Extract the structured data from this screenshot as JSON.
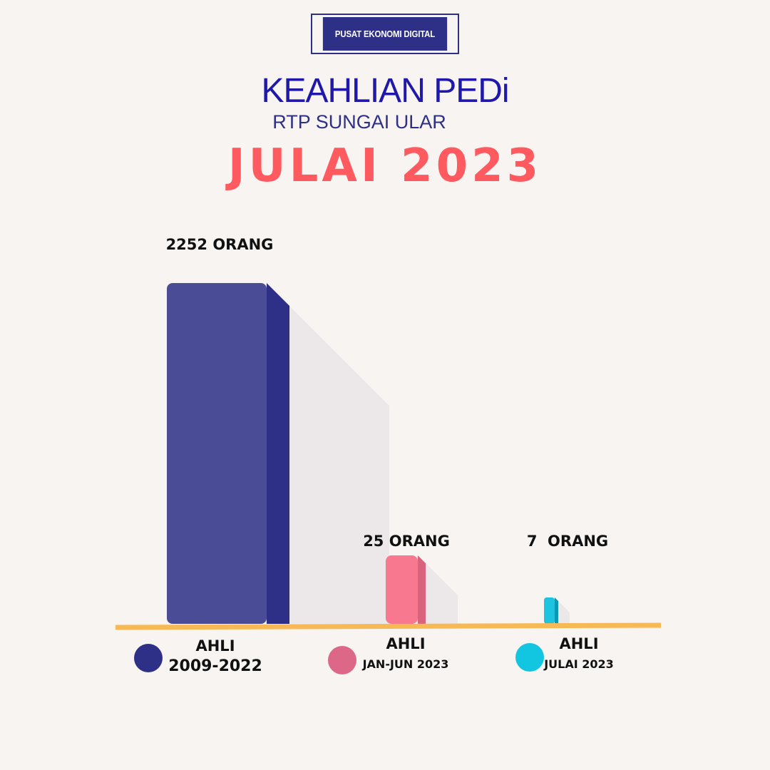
{
  "badge": {
    "text": "PUSAT EKONOMI DIGITAL"
  },
  "header": {
    "title": "KEAHLIAN PEDi",
    "subtitle": "RTP SUNGAI ULAR",
    "headline": "JULAI 2023"
  },
  "chart_data": {
    "type": "bar",
    "categories": [
      "AHLI 2009-2022",
      "AHLI JAN-JUN 2023",
      "AHLI JULAI 2023"
    ],
    "values": [
      2252,
      25,
      7
    ],
    "value_labels": [
      "2252 ORANG",
      "25 ORANG",
      "7  ORANG"
    ],
    "category_lines": [
      [
        "AHLI",
        "2009-2022"
      ],
      [
        "AHLI",
        "JAN-JUN 2023"
      ],
      [
        "AHLI",
        "JULAI 2023"
      ]
    ],
    "colors": [
      "#4a4c96",
      "#f7788f",
      "#1ec3df"
    ],
    "side_colors": [
      "#2e2f86",
      "#d9627d",
      "#0b98b4"
    ],
    "legend_colors": [
      "#2e2f86",
      "#dd6786",
      "#12c5e0"
    ],
    "baseline_color": "#f7b955",
    "legend": "below-categories",
    "grid": false
  }
}
